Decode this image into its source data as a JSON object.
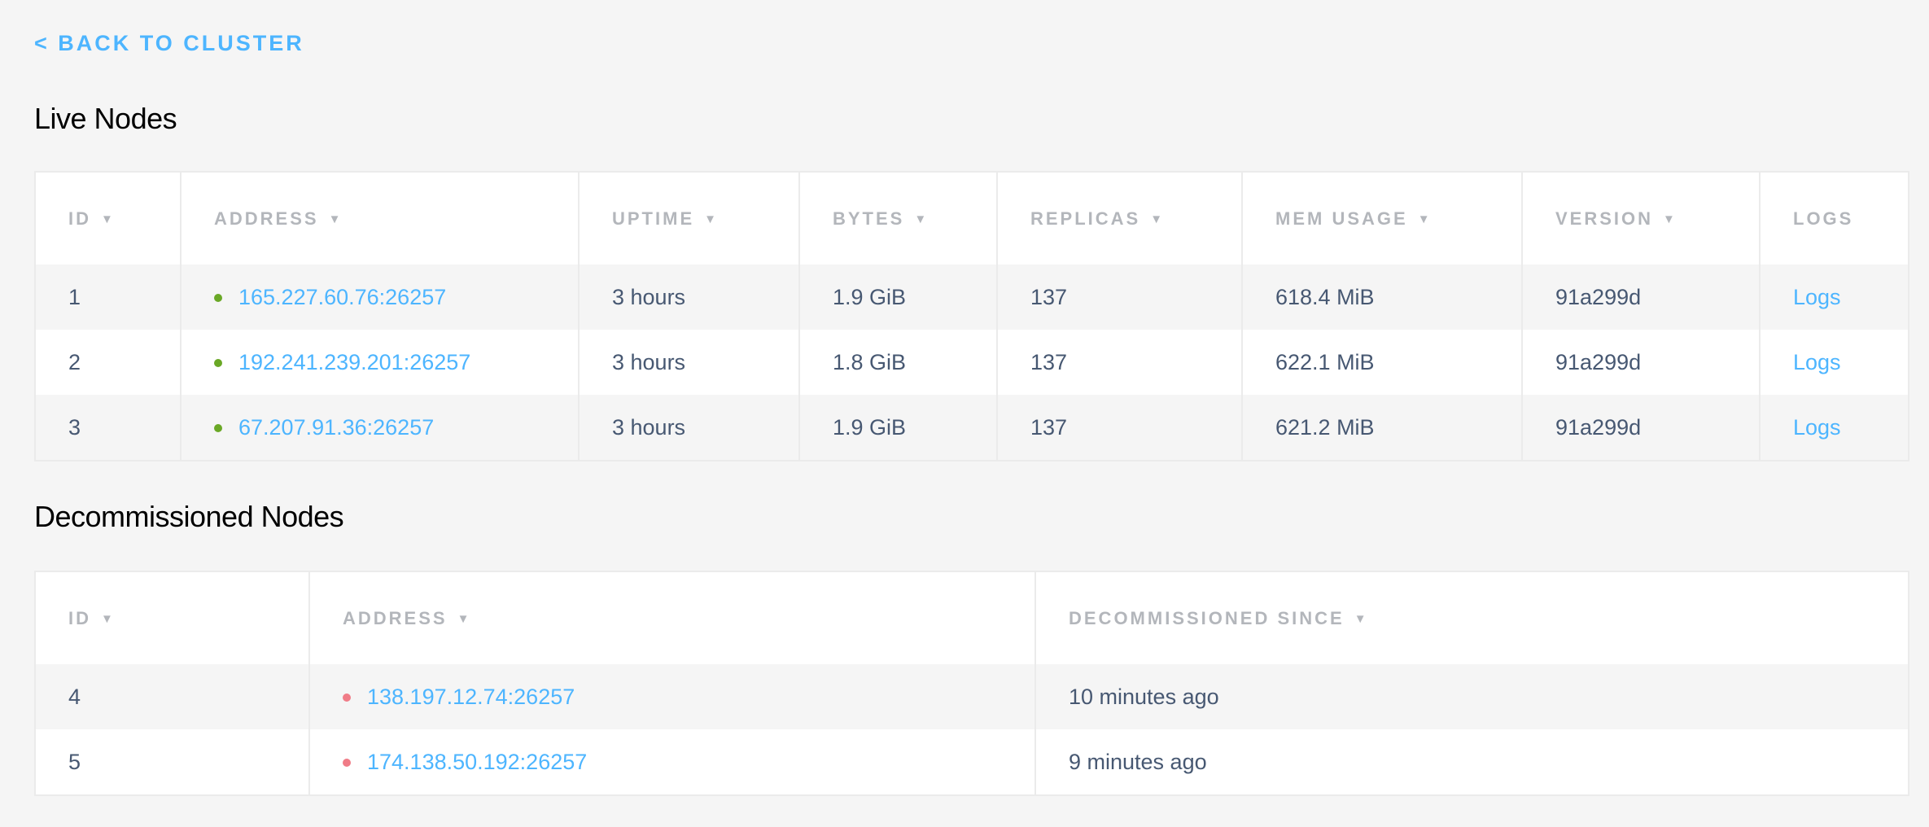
{
  "back_link": "< BACK TO CLUSTER",
  "colors": {
    "accent": "#4db5ff",
    "live": "#6aa826",
    "decommissioned": "#f07c87"
  },
  "live": {
    "title": "Live Nodes",
    "columns": [
      "ID",
      "ADDRESS",
      "UPTIME",
      "BYTES",
      "REPLICAS",
      "MEM USAGE",
      "VERSION",
      "LOGS"
    ],
    "sort_icon": "▼",
    "rows": [
      {
        "id": "1",
        "address": "165.227.60.76:26257",
        "uptime": "3 hours",
        "bytes": "1.9 GiB",
        "replicas": "137",
        "mem": "618.4 MiB",
        "version": "91a299d",
        "logs": "Logs"
      },
      {
        "id": "2",
        "address": "192.241.239.201:26257",
        "uptime": "3 hours",
        "bytes": "1.8 GiB",
        "replicas": "137",
        "mem": "622.1 MiB",
        "version": "91a299d",
        "logs": "Logs"
      },
      {
        "id": "3",
        "address": "67.207.91.36:26257",
        "uptime": "3 hours",
        "bytes": "1.9 GiB",
        "replicas": "137",
        "mem": "621.2 MiB",
        "version": "91a299d",
        "logs": "Logs"
      }
    ]
  },
  "decommissioned": {
    "title": "Decommissioned Nodes",
    "columns": [
      "ID",
      "ADDRESS",
      "DECOMMISSIONED SINCE"
    ],
    "rows": [
      {
        "id": "4",
        "address": "138.197.12.74:26257",
        "since": "10 minutes ago"
      },
      {
        "id": "5",
        "address": "174.138.50.192:26257",
        "since": "9 minutes ago"
      }
    ]
  }
}
